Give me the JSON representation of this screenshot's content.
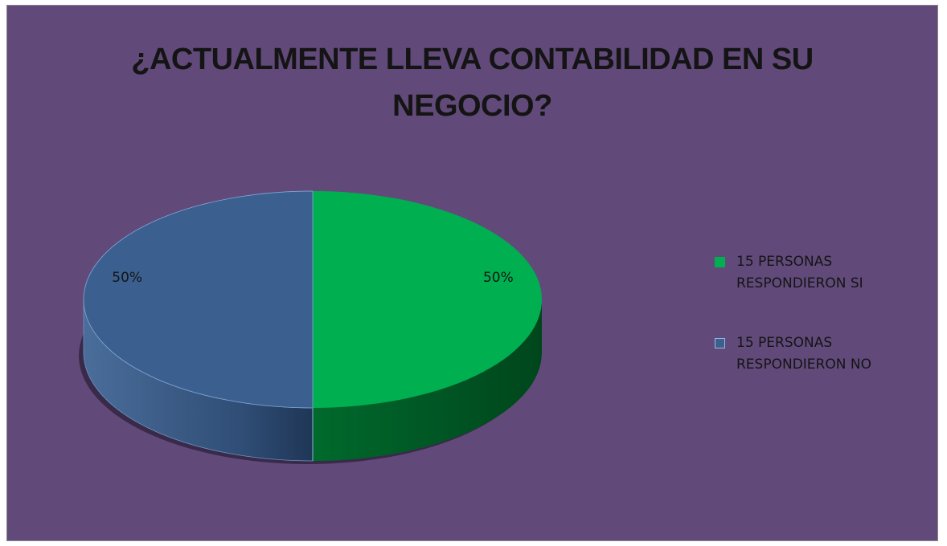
{
  "colors": {
    "background": "#614a7a",
    "si": "#00b050",
    "no": "#3b5f8e"
  },
  "chart_data": {
    "type": "pie",
    "title": "¿ACTUALMENTE LLEVA CONTABILIDAD EN SU NEGOCIO?",
    "title_lines": [
      "¿ACTUALMENTE LLEVA CONTABILIDAD EN SU",
      "NEGOCIO?"
    ],
    "style": "3d",
    "legend_position": "right",
    "categories": [
      "15 PERSONAS RESPONDIERON SI",
      "15 PERSONAS RESPONDIERON NO"
    ],
    "values": [
      50,
      50
    ],
    "data_labels": [
      "50%",
      "50%"
    ],
    "legend": [
      {
        "lines": [
          "15 PERSONAS",
          "RESPONDIERON SI"
        ],
        "color": "#00b050"
      },
      {
        "lines": [
          "15 PERSONAS",
          "RESPONDIERON NO"
        ],
        "color": "#3b5f8e"
      }
    ]
  }
}
